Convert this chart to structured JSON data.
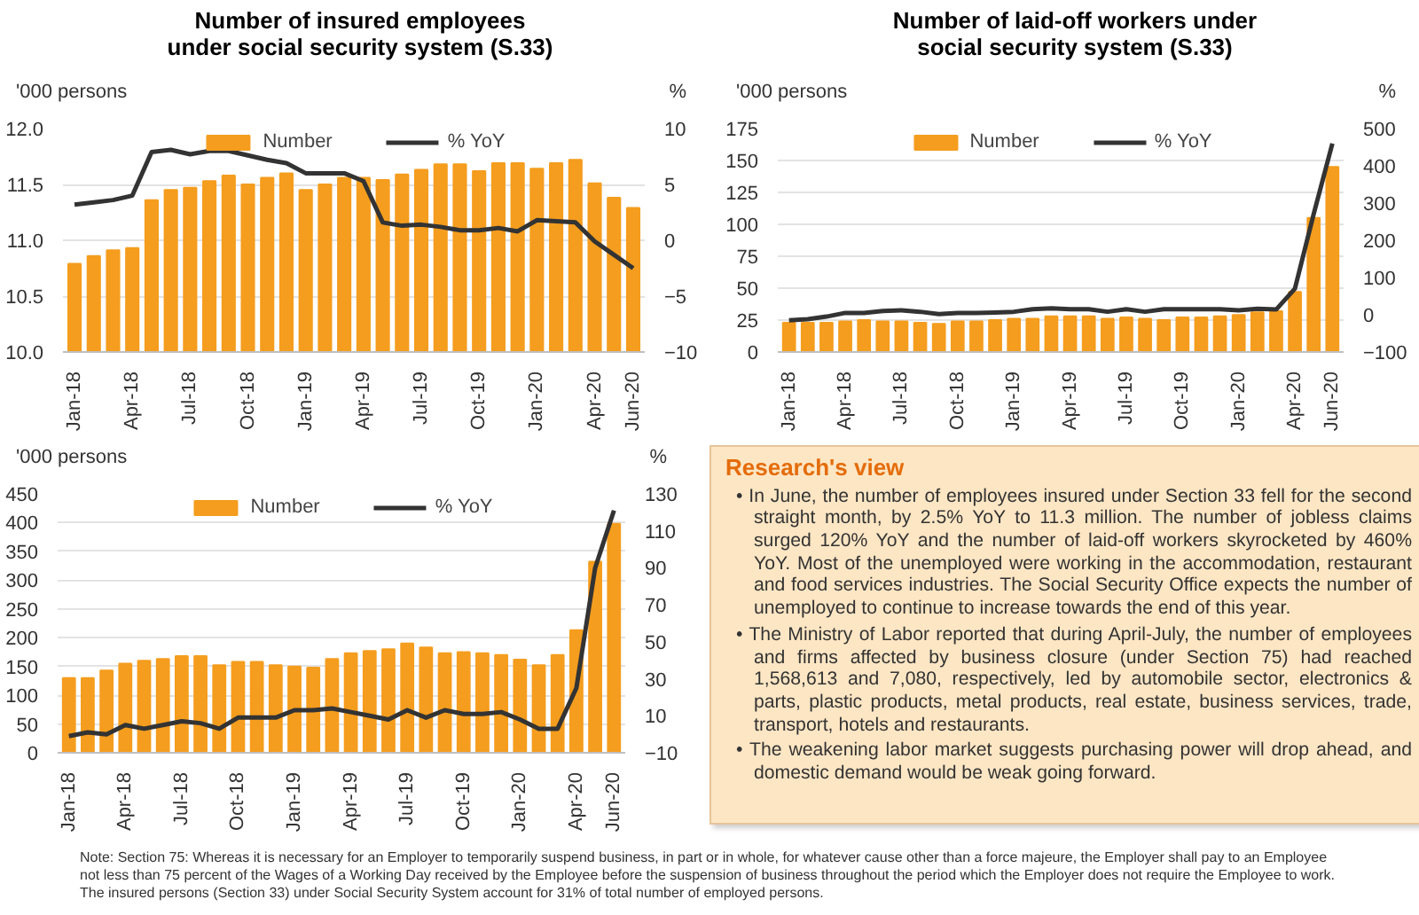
{
  "chart_data": [
    {
      "type": "bar",
      "title": "Number of insured employees\nunder social security system (S.33)",
      "ylabel": "'000 persons",
      "y2label": "%",
      "categories": [
        "Jan-18",
        null,
        null,
        "Apr-18",
        null,
        null,
        "Jul-18",
        null,
        null,
        "Oct-18",
        null,
        null,
        "Jan-19",
        null,
        null,
        "Apr-19",
        null,
        null,
        "Jul-19",
        null,
        null,
        "Oct-19",
        null,
        null,
        "Jan-20",
        null,
        null,
        "Apr-20",
        null,
        "Jun-20"
      ],
      "ylim": [
        10.0,
        12.0
      ],
      "yticks": [
        {
          "value": 10.0,
          "label": "10.0"
        },
        {
          "value": 10.5,
          "label": "10.5"
        },
        {
          "value": 11.0,
          "label": "11.0"
        },
        {
          "value": 11.5,
          "label": "11.5"
        },
        {
          "value": 12.0,
          "label": "12.0"
        }
      ],
      "y2lim": [
        -10,
        10
      ],
      "y2ticks": [
        -10,
        -5,
        0,
        5,
        10
      ],
      "grid": "y",
      "legend": "top",
      "series": [
        {
          "name": "Number",
          "type": "bar",
          "color": "#f59d1e",
          "values": [
            10.79,
            10.86,
            10.91,
            10.93,
            11.36,
            11.45,
            11.47,
            11.53,
            11.58,
            11.5,
            11.56,
            11.6,
            11.45,
            11.5,
            11.56,
            11.56,
            11.54,
            11.59,
            11.63,
            11.68,
            11.68,
            11.62,
            11.69,
            11.69,
            11.64,
            11.69,
            11.72,
            11.51,
            11.38,
            11.29
          ]
        },
        {
          "name": "% YoY",
          "type": "line",
          "axis": "y2",
          "color": "#333333",
          "values": [
            3.2,
            3.4,
            3.6,
            4.0,
            7.9,
            8.1,
            7.7,
            8.0,
            8.0,
            7.6,
            7.2,
            6.9,
            6.0,
            6.0,
            6.0,
            5.3,
            1.6,
            1.3,
            1.4,
            1.2,
            0.9,
            0.9,
            1.1,
            0.8,
            1.8,
            1.7,
            1.6,
            -0.1,
            -1.3,
            -2.5
          ]
        }
      ]
    },
    {
      "type": "bar",
      "title": "Number of laid-off workers under\nsocial security system (S.33)",
      "ylabel": "'000 persons",
      "y2label": "%",
      "categories": [
        "Jan-18",
        null,
        null,
        "Apr-18",
        null,
        null,
        "Jul-18",
        null,
        null,
        "Oct-18",
        null,
        null,
        "Jan-19",
        null,
        null,
        "Apr-19",
        null,
        null,
        "Jul-19",
        null,
        null,
        "Oct-19",
        null,
        null,
        "Jan-20",
        null,
        null,
        "Apr-20",
        null,
        "Jun-20"
      ],
      "ylim": [
        0,
        175
      ],
      "yticks": [
        0,
        25,
        50,
        75,
        100,
        125,
        150,
        175
      ],
      "y2lim": [
        -100,
        500
      ],
      "y2ticks": [
        -100,
        0,
        100,
        200,
        300,
        400,
        500
      ],
      "grid": "y",
      "legend": "top",
      "series": [
        {
          "name": "Number",
          "type": "bar",
          "color": "#f59d1e",
          "values": [
            23,
            23,
            23,
            24,
            25,
            24,
            24,
            23,
            22,
            24,
            24,
            25,
            26,
            26,
            28,
            28,
            28,
            26,
            27,
            26,
            25,
            27,
            27,
            28,
            29,
            31,
            32,
            47,
            105,
            145
          ]
        },
        {
          "name": "% YoY",
          "type": "line",
          "axis": "y2",
          "color": "#333333",
          "values": [
            -15,
            -12,
            -5,
            5,
            5,
            10,
            12,
            8,
            2,
            5,
            5,
            6,
            8,
            15,
            17,
            15,
            15,
            8,
            15,
            8,
            15,
            15,
            15,
            15,
            12,
            16,
            14,
            70,
            270,
            460
          ]
        }
      ]
    },
    {
      "type": "bar",
      "ylabel": "'000 persons",
      "y2label": "%",
      "categories": [
        "Jan-18",
        null,
        null,
        "Apr-18",
        null,
        null,
        "Jul-18",
        null,
        null,
        "Oct-18",
        null,
        null,
        "Jan-19",
        null,
        null,
        "Apr-19",
        null,
        null,
        "Jul-19",
        null,
        null,
        "Oct-19",
        null,
        null,
        "Jan-20",
        null,
        null,
        "Apr-20",
        null,
        "Jun-20"
      ],
      "ylim": [
        0,
        450
      ],
      "yticks": [
        0,
        50,
        100,
        150,
        200,
        250,
        300,
        350,
        400,
        450
      ],
      "y2lim": [
        -10,
        130
      ],
      "y2ticks": [
        -10,
        10,
        30,
        50,
        70,
        90,
        110,
        130
      ],
      "grid": "y",
      "legend": "top",
      "series": [
        {
          "name": "Number",
          "type": "bar",
          "color": "#f59d1e",
          "values": [
            130,
            130,
            143,
            155,
            160,
            163,
            168,
            168,
            152,
            158,
            158,
            152,
            150,
            148,
            163,
            173,
            177,
            180,
            190,
            183,
            173,
            175,
            173,
            170,
            162,
            152,
            170,
            213,
            332,
            398
          ]
        },
        {
          "name": "% YoY",
          "type": "line",
          "axis": "y2",
          "color": "#333333",
          "values": [
            -1,
            1,
            0,
            5,
            3,
            5,
            7,
            6,
            3,
            9,
            9,
            9,
            13,
            13,
            14,
            12,
            10,
            8,
            13,
            9,
            13,
            11,
            11,
            12,
            8,
            3,
            3,
            25,
            90,
            121
          ]
        }
      ],
      "annotations": [
        "Note:  Section 75:  Whereas it is necessary for an Employer to temporarily suspend business, in part or in whole, for whatever cause other than a force majeure, the Employer shall pay to an Employee not less than 75 percent of the Wages of a Working Day received by the Employee before the suspension of business throughout the period which the Employer does not require the Employee to work.",
        "The insured persons (Section 33) under Social Security System account for 31% of total number of employed persons."
      ]
    },
    {
      "type": "other",
      "title": "Research's view",
      "annotations": [
        "• In June, the number of employees insured under Section 33 fell for the second straight month, by 2.5% YoY to 11.3 million. The number of jobless claims surged 120% YoY and the number of laid-off workers skyrocketed by 460% YoY. Most of the unemployed were working in the accommodation, restaurant and food services industries. The Social Security Office expects the number of unemployed to continue to increase towards the end of this year.",
        "• The Ministry of Labor reported that during April-July, the number of employees and firms affected by business closure (under Section 75) had reached 1,568,613 and 7,080, respectively, led by automobile sector, electronics & parts, plastic products, metal products, real estate, business services, trade, transport, hotels and restaurants.",
        "• The weakening labor market suggests purchasing power will drop ahead, and domestic demand would be weak going forward."
      ]
    }
  ]
}
